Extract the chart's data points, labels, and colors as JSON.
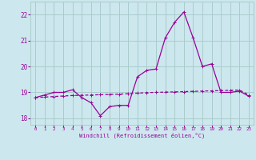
{
  "xlabel": "Windchill (Refroidissement éolien,°C)",
  "background_color": "#cce8ee",
  "grid_color": "#aacccc",
  "line_color": "#990099",
  "hours": [
    0,
    1,
    2,
    3,
    4,
    5,
    6,
    7,
    8,
    9,
    10,
    11,
    12,
    13,
    14,
    15,
    16,
    17,
    18,
    19,
    20,
    21,
    22,
    23
  ],
  "temp_line": [
    18.8,
    18.9,
    19.0,
    19.0,
    19.1,
    18.8,
    18.6,
    18.1,
    18.45,
    18.5,
    18.5,
    19.6,
    19.85,
    19.9,
    21.1,
    21.7,
    22.1,
    21.1,
    20.0,
    20.1,
    19.0,
    19.0,
    19.05,
    18.85
  ],
  "trend_line": [
    18.8,
    18.82,
    18.84,
    18.86,
    18.88,
    18.89,
    18.9,
    18.91,
    18.92,
    18.93,
    18.95,
    18.97,
    18.99,
    19.0,
    19.01,
    19.02,
    19.03,
    19.04,
    19.05,
    19.06,
    19.07,
    19.08,
    19.09,
    18.9
  ],
  "ylim": [
    17.75,
    22.5
  ],
  "yticks": [
    18,
    19,
    20,
    21,
    22
  ],
  "xlim": [
    -0.5,
    23.5
  ]
}
